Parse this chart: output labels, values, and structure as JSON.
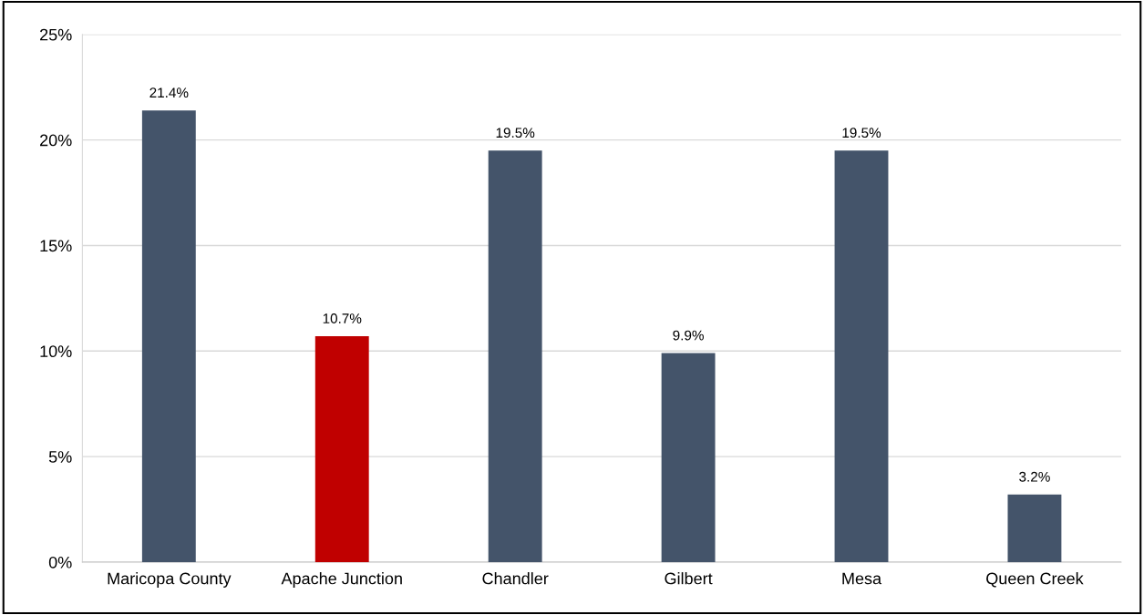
{
  "chart_data": {
    "type": "bar",
    "categories": [
      "Maricopa County",
      "Apache Junction",
      "Chandler",
      "Gilbert",
      "Mesa",
      "Queen Creek"
    ],
    "values": [
      21.4,
      10.7,
      19.5,
      9.9,
      19.5,
      3.2
    ],
    "colors": [
      "#44546a",
      "#c00000",
      "#44546a",
      "#44546a",
      "#44546a",
      "#44546a"
    ],
    "value_labels": [
      "21.4%",
      "10.7%",
      "19.5%",
      "9.9%",
      "19.5%",
      "3.2%"
    ],
    "ylim": [
      0,
      25
    ],
    "yticks": [
      {
        "value": 0,
        "label": "0%"
      },
      {
        "value": 5,
        "label": "5%"
      },
      {
        "value": 10,
        "label": "10%"
      },
      {
        "value": 15,
        "label": "15%"
      },
      {
        "value": 20,
        "label": "20%"
      },
      {
        "value": 25,
        "label": "25%"
      }
    ],
    "grid": "y",
    "legend": false
  }
}
